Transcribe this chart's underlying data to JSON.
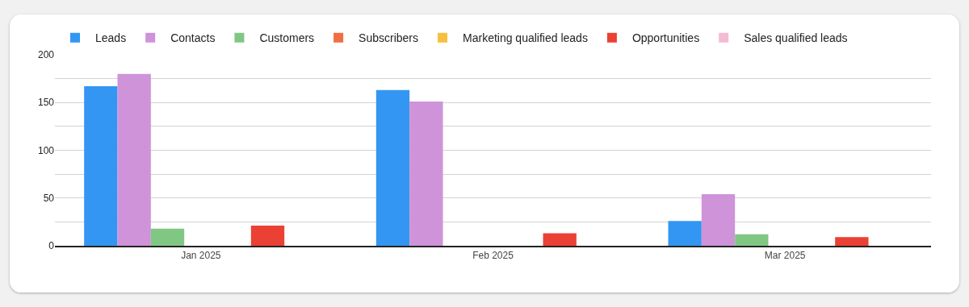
{
  "chart_data": {
    "type": "bar",
    "categories": [
      "Jan 2025",
      "Feb 2025",
      "Mar 2025"
    ],
    "series": [
      {
        "name": "Leads",
        "color": "#3396f3",
        "values": [
          167,
          163,
          26
        ]
      },
      {
        "name": "Contacts",
        "color": "#ce93d8",
        "values": [
          180,
          151,
          54
        ]
      },
      {
        "name": "Customers",
        "color": "#81c784",
        "values": [
          18,
          0,
          12
        ]
      },
      {
        "name": "Subscribers",
        "color": "#f06e42",
        "values": [
          0,
          0,
          0
        ]
      },
      {
        "name": "Marketing qualified leads",
        "color": "#f6bf41",
        "values": [
          0,
          0,
          0
        ]
      },
      {
        "name": "Opportunities",
        "color": "#eb4034",
        "values": [
          21,
          13,
          9
        ]
      },
      {
        "name": "Sales qualified leads",
        "color": "#f4bbd2",
        "values": [
          0,
          0,
          0
        ]
      }
    ],
    "ylim": [
      0,
      200
    ],
    "yticks": [
      0,
      {
        "value": 25,
        "label": null
      },
      50,
      {
        "value": 75,
        "label": null
      },
      100,
      {
        "value": 125,
        "label": null
      },
      150,
      {
        "value": 175,
        "label": null
      },
      200
    ],
    "grid": "y",
    "legend": "top left"
  }
}
